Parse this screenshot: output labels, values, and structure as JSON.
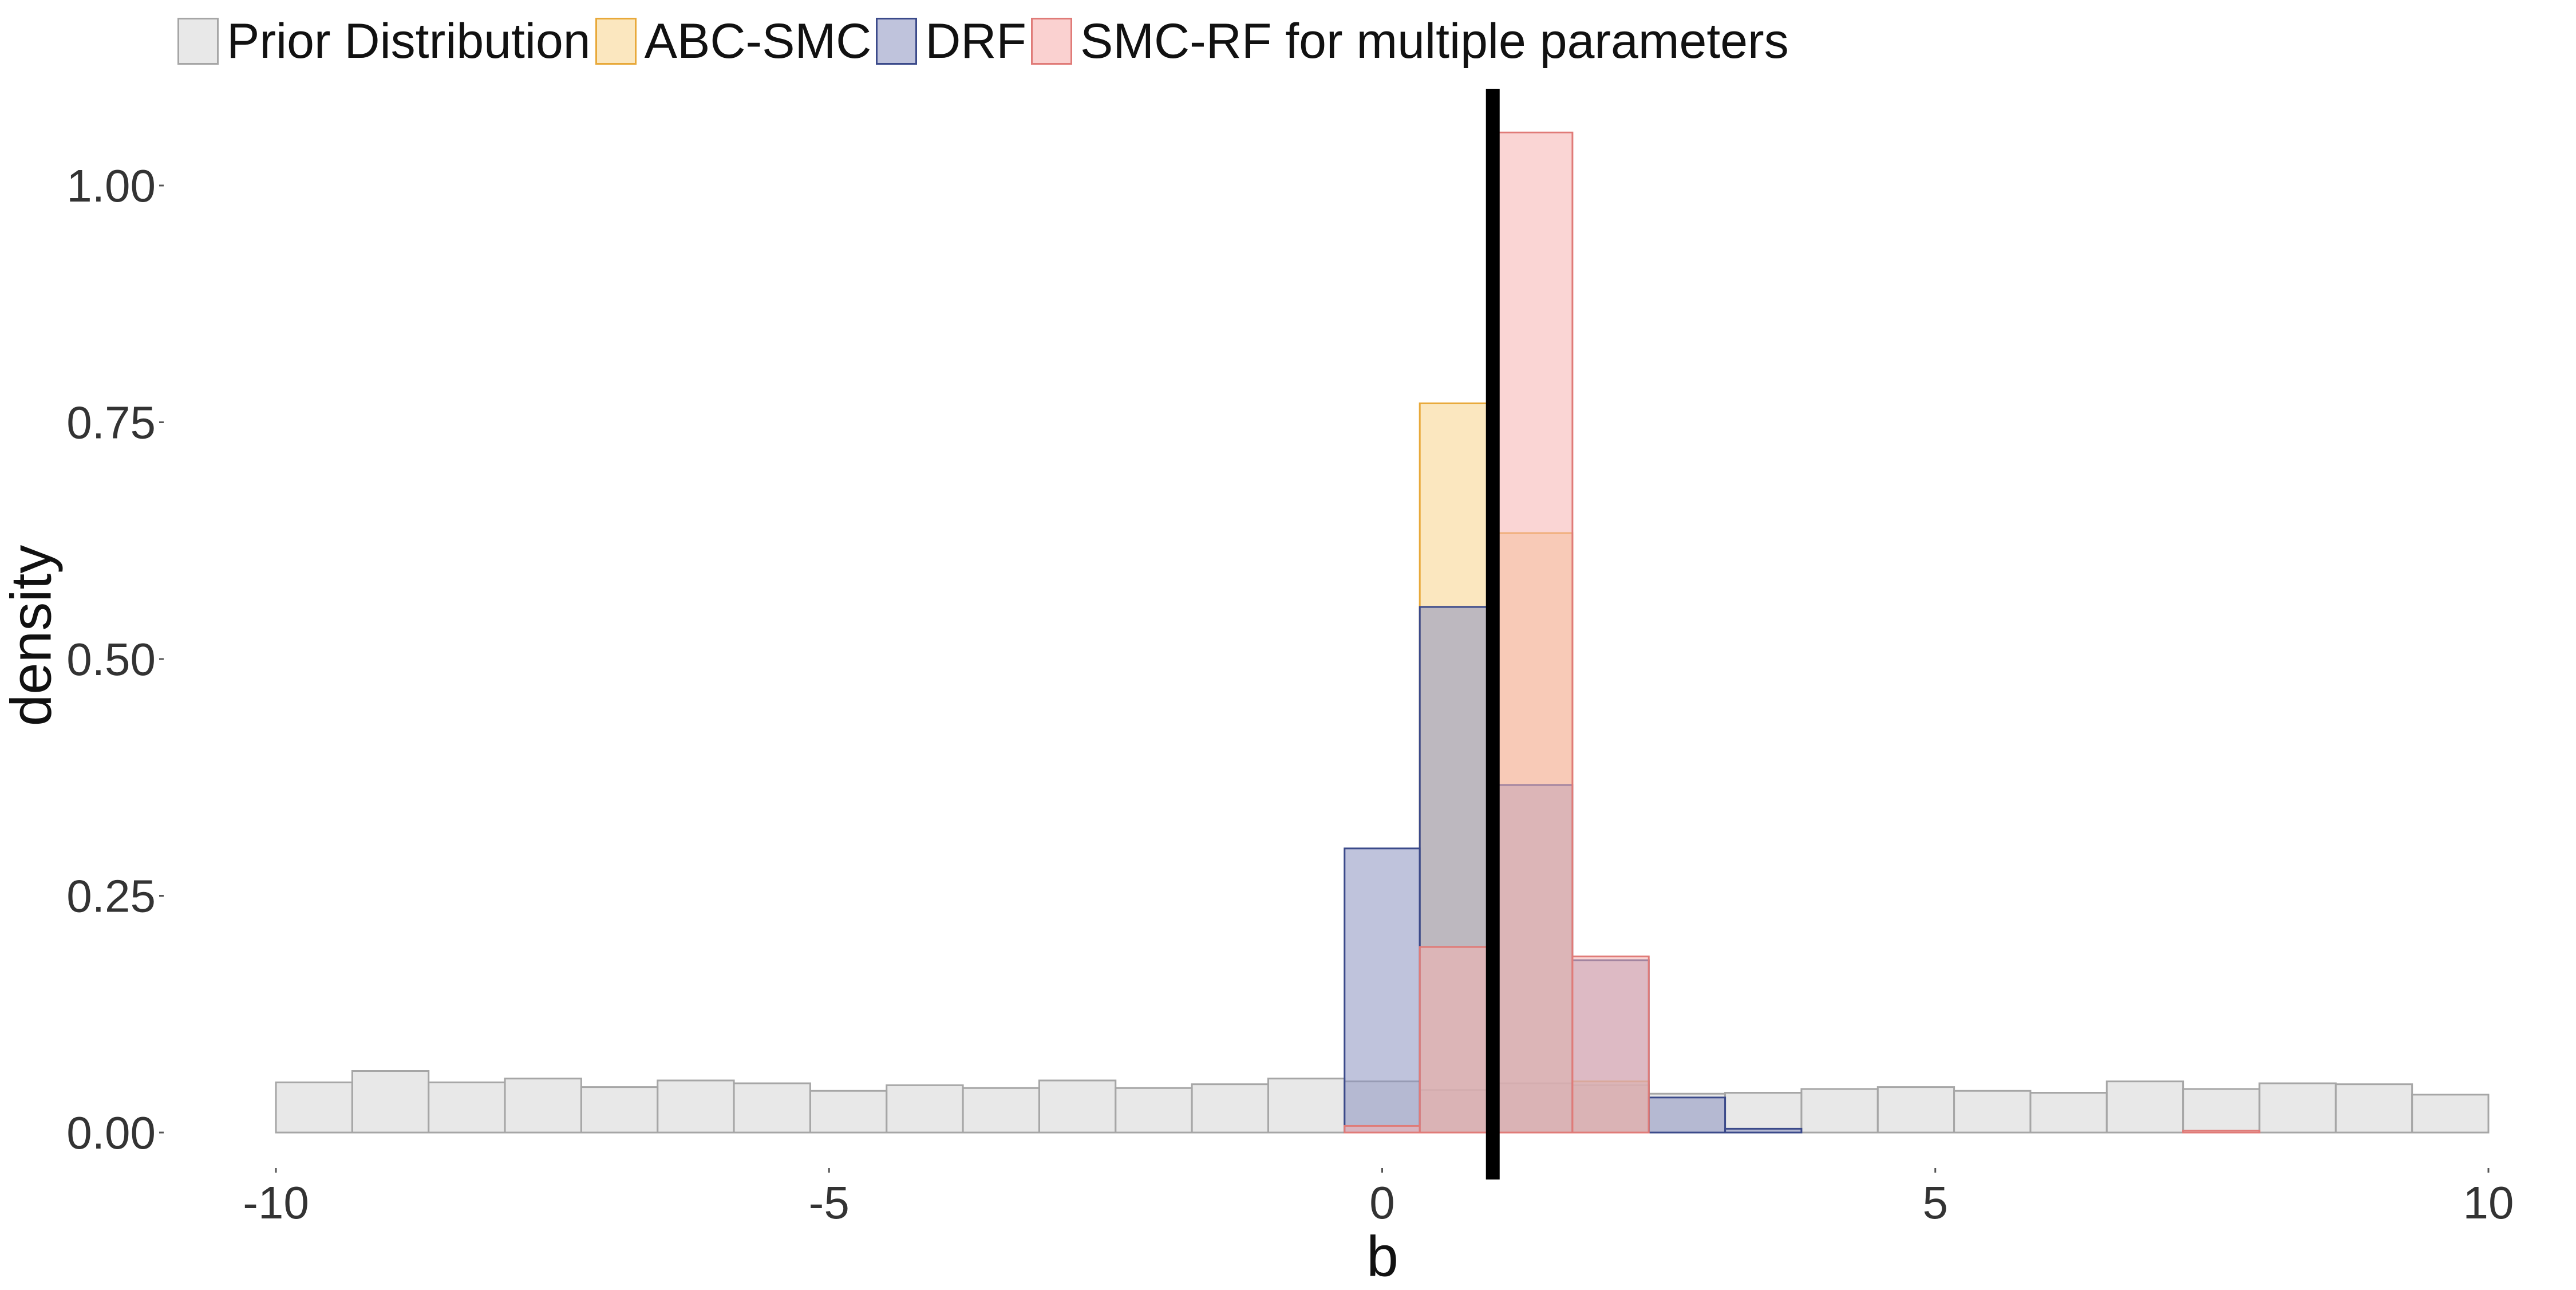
{
  "chart_data": {
    "type": "bar",
    "xlabel": "b",
    "ylabel": "density",
    "xlim": [
      -10,
      10
    ],
    "ylim": [
      0,
      1.1
    ],
    "x_ticks": [
      -10,
      -5,
      0,
      5,
      10
    ],
    "y_ticks": [
      0,
      0.25,
      0.5,
      0.75,
      1.0
    ],
    "x_tick_labels": [
      "-10",
      "-5",
      "0",
      "5",
      "10"
    ],
    "y_tick_labels": [
      "0.00",
      "0.25",
      "0.50",
      "0.75",
      "1.00"
    ],
    "bin_edges": [
      -10.0,
      -9.31,
      -8.62,
      -7.93,
      -7.24,
      -6.55,
      -5.86,
      -5.17,
      -4.48,
      -3.79,
      -3.1,
      -2.41,
      -1.72,
      -1.03,
      -0.34,
      0.34,
      1.03,
      1.72,
      2.41,
      3.1,
      3.79,
      4.48,
      5.17,
      5.86,
      6.55,
      7.24,
      7.93,
      8.62,
      9.31,
      10.0
    ],
    "true_value": 1.0,
    "grid": false,
    "legend_position": "top",
    "series": [
      {
        "name": "Prior Distribution",
        "fill": "#d9d9d9",
        "stroke": "#a6a6a6",
        "values": [
          0.053,
          0.065,
          0.053,
          0.057,
          0.048,
          0.055,
          0.052,
          0.044,
          0.05,
          0.047,
          0.055,
          0.047,
          0.051,
          0.057,
          0.054,
          0.045,
          0.052,
          0.05,
          0.041,
          0.042,
          0.046,
          0.048,
          0.044,
          0.042,
          0.054,
          0.046,
          0.052,
          0.051,
          0.04
        ]
      },
      {
        "name": "ABC-SMC",
        "fill": "#f7d48a",
        "stroke": "#e8a93a",
        "values": [
          0,
          0,
          0,
          0,
          0,
          0,
          0,
          0,
          0,
          0,
          0,
          0,
          0,
          0,
          0,
          0.77,
          0.633,
          0.054,
          0,
          0,
          0,
          0,
          0,
          0,
          0,
          0,
          0,
          0,
          0
        ]
      },
      {
        "name": "DRF",
        "fill": "#8a92bf",
        "stroke": "#3b4a8a",
        "values": [
          0,
          0,
          0,
          0,
          0,
          0,
          0,
          0,
          0,
          0,
          0,
          0,
          0,
          0,
          0.3,
          0.555,
          0.367,
          0.182,
          0.037,
          0.004,
          0,
          0,
          0,
          0,
          0,
          0,
          0,
          0,
          0
        ]
      },
      {
        "name": "SMC-RF for multiple parameters",
        "fill": "#f6b3b0",
        "stroke": "#e07b78",
        "values": [
          0,
          0,
          0,
          0,
          0,
          0,
          0,
          0,
          0,
          0,
          0,
          0,
          0,
          0,
          0.007,
          0.196,
          1.056,
          0.186,
          0,
          0,
          0,
          0,
          0,
          0,
          0,
          0.002,
          0,
          0,
          0
        ]
      }
    ]
  }
}
